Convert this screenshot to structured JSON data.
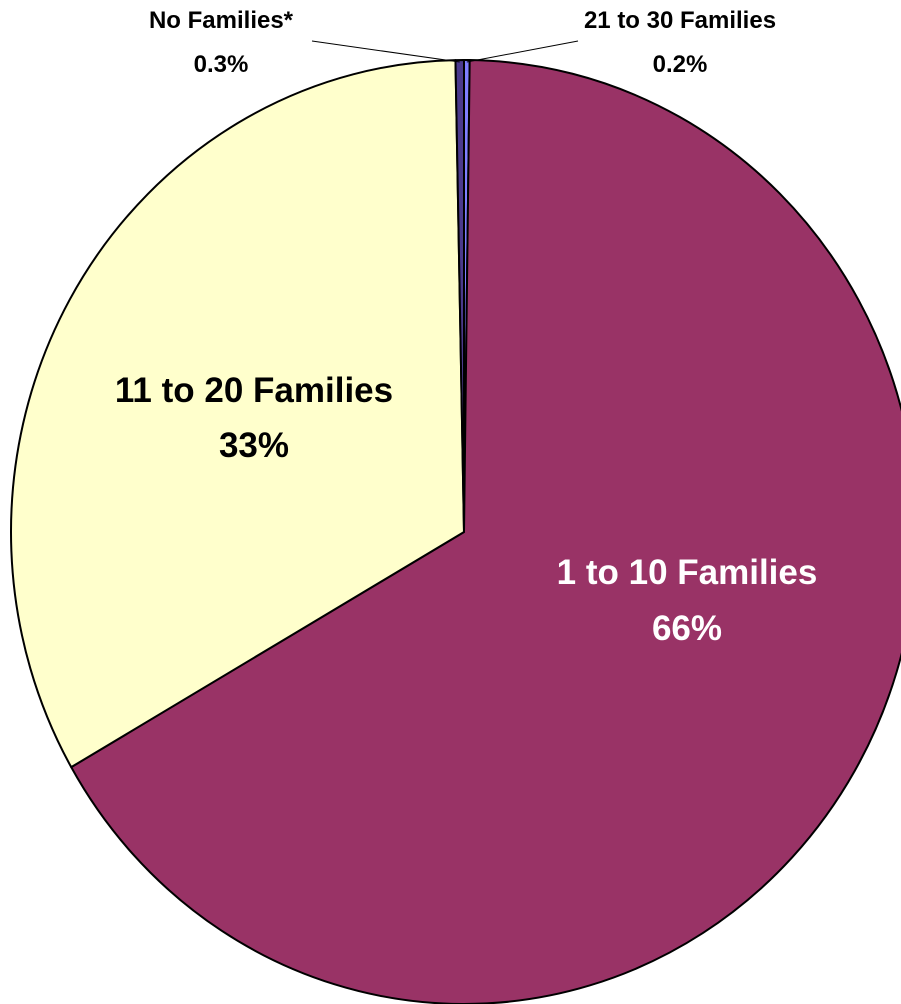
{
  "chart_data": {
    "type": "pie",
    "slices": [
      {
        "label": "21 to 30 Families",
        "percent_label": "0.2%",
        "value": 0.2,
        "color": "#7f7fff"
      },
      {
        "label": "1 to 10 Families",
        "percent_label": "66%",
        "value": 66.5,
        "color": "#993366"
      },
      {
        "label": "11 to 20 Families",
        "percent_label": "33%",
        "value": 33.0,
        "color": "#ffffcc"
      },
      {
        "label": "No Families*",
        "percent_label": "0.3%",
        "value": 0.3,
        "color": "#4b3a8c"
      }
    ],
    "start_angle_deg": 0,
    "direction": "clockwise",
    "label_colors": {
      "1 to 10 Families": "#ffffff",
      "11 to 20 Families": "#000000",
      "21 to 30 Families": "#000000",
      "No Families*": "#000000"
    },
    "legend": "none",
    "title": "",
    "xlabel": "",
    "ylabel": ""
  }
}
